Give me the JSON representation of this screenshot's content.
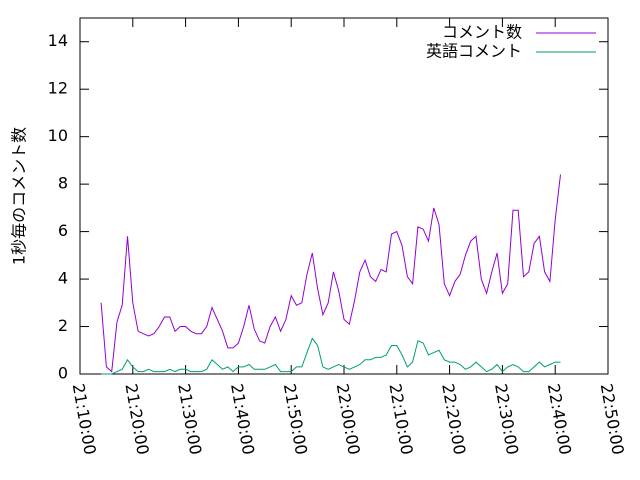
{
  "chart_data": {
    "type": "line",
    "ylabel": "1秒毎のコメント数",
    "xlabel": "",
    "xlim": [
      "21:10:00",
      "22:50:00"
    ],
    "ylim": [
      0,
      15
    ],
    "x_ticks": [
      "21:10:00",
      "21:20:00",
      "21:30:00",
      "21:40:00",
      "21:50:00",
      "22:00:00",
      "22:10:00",
      "22:20:00",
      "22:30:00",
      "22:40:00",
      "22:50:00"
    ],
    "y_ticks": [
      0,
      2,
      4,
      6,
      8,
      10,
      12,
      14
    ],
    "grid": false,
    "legend_position": "top-right",
    "x": [
      "21:14:00",
      "21:15:00",
      "21:16:00",
      "21:17:00",
      "21:18:00",
      "21:19:00",
      "21:20:00",
      "21:21:00",
      "21:22:00",
      "21:23:00",
      "21:24:00",
      "21:25:00",
      "21:26:00",
      "21:27:00",
      "21:28:00",
      "21:29:00",
      "21:30:00",
      "21:31:00",
      "21:32:00",
      "21:33:00",
      "21:34:00",
      "21:35:00",
      "21:36:00",
      "21:37:00",
      "21:38:00",
      "21:39:00",
      "21:40:00",
      "21:41:00",
      "21:42:00",
      "21:43:00",
      "21:44:00",
      "21:45:00",
      "21:46:00",
      "21:47:00",
      "21:48:00",
      "21:49:00",
      "21:50:00",
      "21:51:00",
      "21:52:00",
      "21:53:00",
      "21:54:00",
      "21:55:00",
      "21:56:00",
      "21:57:00",
      "21:58:00",
      "21:59:00",
      "22:00:00",
      "22:01:00",
      "22:02:00",
      "22:03:00",
      "22:04:00",
      "22:05:00",
      "22:06:00",
      "22:07:00",
      "22:08:00",
      "22:09:00",
      "22:10:00",
      "22:11:00",
      "22:12:00",
      "22:13:00",
      "22:14:00",
      "22:15:00",
      "22:16:00",
      "22:17:00",
      "22:18:00",
      "22:19:00",
      "22:20:00",
      "22:21:00",
      "22:22:00",
      "22:23:00",
      "22:24:00",
      "22:25:00",
      "22:26:00",
      "22:27:00",
      "22:28:00",
      "22:29:00",
      "22:30:00",
      "22:31:00",
      "22:32:00",
      "22:33:00",
      "22:34:00",
      "22:35:00",
      "22:36:00",
      "22:37:00",
      "22:38:00",
      "22:39:00",
      "22:40:00",
      "22:41:00"
    ],
    "series": [
      {
        "name": "コメント数",
        "color": "#9400d3",
        "values": [
          3.0,
          0.3,
          0.1,
          2.2,
          2.9,
          5.8,
          3.0,
          1.8,
          1.7,
          1.6,
          1.7,
          2.0,
          2.4,
          2.4,
          1.8,
          2.0,
          2.0,
          1.8,
          1.7,
          1.7,
          2.0,
          2.8,
          2.3,
          1.8,
          1.1,
          1.1,
          1.3,
          2.0,
          2.9,
          1.9,
          1.4,
          1.3,
          2.0,
          2.4,
          1.8,
          2.3,
          3.3,
          2.9,
          3.0,
          4.2,
          5.1,
          3.6,
          2.5,
          3.0,
          4.3,
          3.5,
          2.3,
          2.1,
          3.1,
          4.3,
          4.8,
          4.1,
          3.9,
          4.4,
          4.3,
          5.9,
          6.0,
          5.4,
          4.1,
          3.8,
          6.2,
          6.1,
          5.6,
          7.0,
          6.3,
          3.8,
          3.3,
          3.9,
          4.2,
          5.0,
          5.6,
          5.8,
          4.0,
          3.4,
          4.3,
          5.1,
          3.4,
          3.8,
          6.9,
          6.9,
          4.1,
          4.3,
          5.5,
          5.8,
          4.3,
          3.9,
          6.5,
          8.4
        ]
      },
      {
        "name": "英語コメント",
        "color": "#009e73",
        "values": [
          0.0,
          0.0,
          0.0,
          0.1,
          0.2,
          0.6,
          0.3,
          0.1,
          0.1,
          0.2,
          0.1,
          0.1,
          0.1,
          0.2,
          0.1,
          0.2,
          0.2,
          0.1,
          0.1,
          0.1,
          0.2,
          0.6,
          0.4,
          0.2,
          0.3,
          0.1,
          0.3,
          0.3,
          0.4,
          0.2,
          0.2,
          0.2,
          0.3,
          0.4,
          0.1,
          0.1,
          0.1,
          0.3,
          0.3,
          0.9,
          1.5,
          1.2,
          0.3,
          0.2,
          0.3,
          0.4,
          0.3,
          0.2,
          0.3,
          0.4,
          0.6,
          0.6,
          0.7,
          0.7,
          0.8,
          1.2,
          1.2,
          0.8,
          0.3,
          0.5,
          1.4,
          1.3,
          0.8,
          0.9,
          1.0,
          0.6,
          0.5,
          0.5,
          0.4,
          0.2,
          0.3,
          0.5,
          0.3,
          0.1,
          0.2,
          0.4,
          0.1,
          0.3,
          0.4,
          0.3,
          0.1,
          0.1,
          0.3,
          0.5,
          0.3,
          0.4,
          0.5,
          0.5
        ]
      }
    ]
  }
}
